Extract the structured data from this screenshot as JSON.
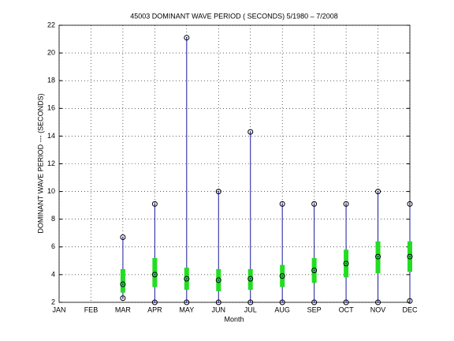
{
  "chart_data": {
    "type": "box",
    "title": "45003  DOMINANT WAVE PERIOD ( SECONDS) 5/1980 – 7/2008",
    "x_label": "Month",
    "y_label": "DOMINANT WAVE PERIOD --- (SECONDS)",
    "categories": [
      "JAN",
      "FEB",
      "MAR",
      "APR",
      "MAY",
      "JUN",
      "JUL",
      "AUG",
      "SEP",
      "OCT",
      "NOV",
      "DEC"
    ],
    "low": [
      null,
      null,
      2.3,
      2.0,
      2.0,
      2.0,
      2.0,
      2.0,
      2.0,
      2.0,
      2.0,
      2.1
    ],
    "high": [
      null,
      null,
      6.7,
      9.1,
      21.1,
      10.0,
      14.3,
      9.1,
      9.1,
      9.1,
      10.0,
      9.1
    ],
    "mean": [
      null,
      null,
      3.3,
      4.0,
      3.7,
      3.6,
      3.7,
      3.9,
      4.3,
      4.8,
      5.3,
      5.3
    ],
    "box_low": [
      null,
      null,
      2.7,
      3.1,
      2.9,
      2.8,
      2.9,
      3.1,
      3.4,
      3.8,
      4.1,
      4.2
    ],
    "box_high": [
      null,
      null,
      4.4,
      5.2,
      4.5,
      4.4,
      4.4,
      4.7,
      5.2,
      5.8,
      6.4,
      6.4
    ],
    "line_color": "#1a1aa0",
    "box_color": "#22dd22",
    "ylim": [
      2,
      22
    ],
    "yticks": [
      2,
      4,
      6,
      8,
      10,
      12,
      14,
      16,
      18,
      20,
      22
    ],
    "grid": true
  }
}
